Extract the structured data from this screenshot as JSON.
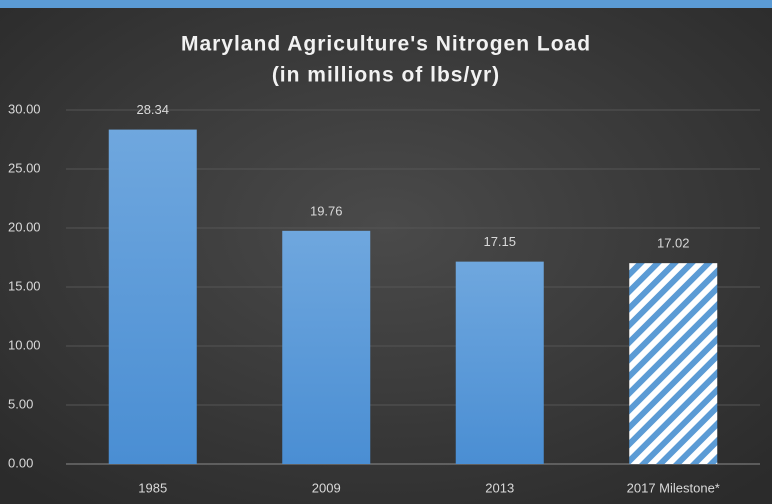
{
  "chart_data": {
    "type": "bar",
    "title": "Maryland Agriculture's Nitrogen Load",
    "subtitle": "(in millions of lbs/yr)",
    "categories": [
      "1985",
      "2009",
      "2013",
      "2017 Milestone*"
    ],
    "values": [
      28.34,
      19.76,
      17.15,
      17.02
    ],
    "hatched": [
      false,
      false,
      false,
      true
    ],
    "color": "#5b9bd5",
    "ylim": [
      0,
      30
    ],
    "yticks": [
      {
        "value": 0,
        "label": "0.00"
      },
      {
        "value": 5,
        "label": "5.00"
      },
      {
        "value": 10,
        "label": "10.00"
      },
      {
        "value": 15,
        "label": "15.00"
      },
      {
        "value": 20,
        "label": "20.00"
      },
      {
        "value": 25,
        "label": "25.00"
      },
      {
        "value": 30,
        "label": "30.00"
      }
    ],
    "grid": true
  }
}
